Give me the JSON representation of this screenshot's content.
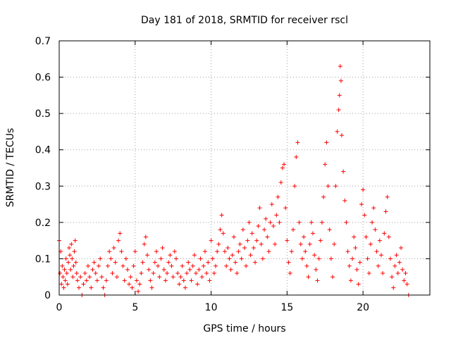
{
  "chart_data": {
    "type": "scatter",
    "title": "Day 181 of 2018, SRMTID for receiver rscl",
    "xlabel": "GPS time / hours",
    "ylabel": "SRMTID / TECUs",
    "xlim": [
      0,
      24.4
    ],
    "ylim": [
      0,
      0.7
    ],
    "xticks": [
      0,
      5,
      10,
      15,
      20
    ],
    "xtick_labels": [
      "0",
      "5",
      "10",
      "15",
      "20"
    ],
    "yticks": [
      0,
      0.1,
      0.2,
      0.3,
      0.4,
      0.5,
      0.6,
      0.7
    ],
    "ytick_labels": [
      "0",
      "0.1",
      "0.2",
      "0.3",
      "0.4",
      "0.5",
      "0.6",
      "0.7"
    ],
    "grid": true,
    "legend": "none",
    "marker": "+",
    "series": [
      {
        "name": "SRMTID",
        "color": "#ff0000",
        "points": [
          [
            0.0,
            0.15
          ],
          [
            0.05,
            0.06
          ],
          [
            0.1,
            0.12
          ],
          [
            0.15,
            0.03
          ],
          [
            0.2,
            0.08
          ],
          [
            0.25,
            0.05
          ],
          [
            0.3,
            0.02
          ],
          [
            0.35,
            0.07
          ],
          [
            0.4,
            0.04
          ],
          [
            0.45,
            0.1
          ],
          [
            0.5,
            0.06
          ],
          [
            0.55,
            0.03
          ],
          [
            0.6,
            0.09
          ],
          [
            0.65,
            0.13
          ],
          [
            0.7,
            0.11
          ],
          [
            0.75,
            0.07
          ],
          [
            0.8,
            0.14
          ],
          [
            0.85,
            0.1
          ],
          [
            0.9,
            0.05
          ],
          [
            0.95,
            0.08
          ],
          [
            1.0,
            0.12
          ],
          [
            1.05,
            0.15
          ],
          [
            1.1,
            0.09
          ],
          [
            1.15,
            0.06
          ],
          [
            1.2,
            0.04
          ],
          [
            1.3,
            0.02
          ],
          [
            1.4,
            0.05
          ],
          [
            1.5,
            0.0
          ],
          [
            1.6,
            0.03
          ],
          [
            1.7,
            0.06
          ],
          [
            1.8,
            0.04
          ],
          [
            1.9,
            0.08
          ],
          [
            2.0,
            0.05
          ],
          [
            2.1,
            0.02
          ],
          [
            2.2,
            0.07
          ],
          [
            2.3,
            0.09
          ],
          [
            2.4,
            0.06
          ],
          [
            2.5,
            0.04
          ],
          [
            2.6,
            0.08
          ],
          [
            2.7,
            0.1
          ],
          [
            2.8,
            0.05
          ],
          [
            2.9,
            0.02
          ],
          [
            3.0,
            0.0
          ],
          [
            3.1,
            0.04
          ],
          [
            3.2,
            0.08
          ],
          [
            3.3,
            0.12
          ],
          [
            3.4,
            0.1
          ],
          [
            3.5,
            0.06
          ],
          [
            3.6,
            0.13
          ],
          [
            3.7,
            0.09
          ],
          [
            3.8,
            0.05
          ],
          [
            3.9,
            0.15
          ],
          [
            4.0,
            0.17
          ],
          [
            4.1,
            0.12
          ],
          [
            4.2,
            0.08
          ],
          [
            4.3,
            0.04
          ],
          [
            4.4,
            0.1
          ],
          [
            4.5,
            0.07
          ],
          [
            4.6,
            0.03
          ],
          [
            4.7,
            0.05
          ],
          [
            4.8,
            0.02
          ],
          [
            4.9,
            0.08
          ],
          [
            5.0,
            0.12
          ],
          [
            5.1,
            0.04
          ],
          [
            5.2,
            0.01
          ],
          [
            5.3,
            0.03
          ],
          [
            5.4,
            0.06
          ],
          [
            5.5,
            0.09
          ],
          [
            5.6,
            0.14
          ],
          [
            5.7,
            0.16
          ],
          [
            5.8,
            0.11
          ],
          [
            5.9,
            0.07
          ],
          [
            6.0,
            0.04
          ],
          [
            6.1,
            0.02
          ],
          [
            6.2,
            0.06
          ],
          [
            6.3,
            0.09
          ],
          [
            6.4,
            0.12
          ],
          [
            6.5,
            0.08
          ],
          [
            6.6,
            0.05
          ],
          [
            6.7,
            0.1
          ],
          [
            6.8,
            0.13
          ],
          [
            6.9,
            0.07
          ],
          [
            7.0,
            0.04
          ],
          [
            7.1,
            0.06
          ],
          [
            7.2,
            0.09
          ],
          [
            7.3,
            0.11
          ],
          [
            7.4,
            0.08
          ],
          [
            7.5,
            0.05
          ],
          [
            7.6,
            0.12
          ],
          [
            7.7,
            0.1
          ],
          [
            7.8,
            0.06
          ],
          [
            7.9,
            0.03
          ],
          [
            8.0,
            0.05
          ],
          [
            8.1,
            0.08
          ],
          [
            8.2,
            0.04
          ],
          [
            8.3,
            0.02
          ],
          [
            8.4,
            0.06
          ],
          [
            8.5,
            0.09
          ],
          [
            8.6,
            0.07
          ],
          [
            8.7,
            0.04
          ],
          [
            8.8,
            0.08
          ],
          [
            8.9,
            0.11
          ],
          [
            9.0,
            0.06
          ],
          [
            9.1,
            0.03
          ],
          [
            9.2,
            0.07
          ],
          [
            9.3,
            0.1
          ],
          [
            9.4,
            0.05
          ],
          [
            9.5,
            0.08
          ],
          [
            9.6,
            0.12
          ],
          [
            9.7,
            0.06
          ],
          [
            9.8,
            0.09
          ],
          [
            9.9,
            0.04
          ],
          [
            10.0,
            0.15
          ],
          [
            10.1,
            0.1
          ],
          [
            10.2,
            0.06
          ],
          [
            10.3,
            0.08
          ],
          [
            10.4,
            0.12
          ],
          [
            10.5,
            0.14
          ],
          [
            10.6,
            0.18
          ],
          [
            10.7,
            0.22
          ],
          [
            10.8,
            0.17
          ],
          [
            10.9,
            0.12
          ],
          [
            11.0,
            0.08
          ],
          [
            11.1,
            0.13
          ],
          [
            11.2,
            0.1
          ],
          [
            11.3,
            0.07
          ],
          [
            11.4,
            0.11
          ],
          [
            11.5,
            0.16
          ],
          [
            11.6,
            0.09
          ],
          [
            11.7,
            0.06
          ],
          [
            11.8,
            0.12
          ],
          [
            11.9,
            0.14
          ],
          [
            12.0,
            0.1
          ],
          [
            12.1,
            0.18
          ],
          [
            12.2,
            0.13
          ],
          [
            12.3,
            0.08
          ],
          [
            12.4,
            0.15
          ],
          [
            12.5,
            0.2
          ],
          [
            12.6,
            0.11
          ],
          [
            12.7,
            0.17
          ],
          [
            12.8,
            0.13
          ],
          [
            12.9,
            0.09
          ],
          [
            13.0,
            0.15
          ],
          [
            13.1,
            0.19
          ],
          [
            13.2,
            0.24
          ],
          [
            13.3,
            0.14
          ],
          [
            13.4,
            0.1
          ],
          [
            13.5,
            0.18
          ],
          [
            13.6,
            0.21
          ],
          [
            13.7,
            0.16
          ],
          [
            13.8,
            0.12
          ],
          [
            13.9,
            0.2
          ],
          [
            14.0,
            0.25
          ],
          [
            14.1,
            0.19
          ],
          [
            14.2,
            0.14
          ],
          [
            14.3,
            0.22
          ],
          [
            14.4,
            0.27
          ],
          [
            14.5,
            0.2
          ],
          [
            14.6,
            0.31
          ],
          [
            14.7,
            0.35
          ],
          [
            14.8,
            0.36
          ],
          [
            14.9,
            0.24
          ],
          [
            15.0,
            0.15
          ],
          [
            15.1,
            0.09
          ],
          [
            15.2,
            0.06
          ],
          [
            15.3,
            0.12
          ],
          [
            15.4,
            0.18
          ],
          [
            15.5,
            0.3
          ],
          [
            15.6,
            0.38
          ],
          [
            15.7,
            0.42
          ],
          [
            15.8,
            0.2
          ],
          [
            15.9,
            0.14
          ],
          [
            16.0,
            0.1
          ],
          [
            16.1,
            0.16
          ],
          [
            16.2,
            0.12
          ],
          [
            16.3,
            0.08
          ],
          [
            16.4,
            0.05
          ],
          [
            16.5,
            0.14
          ],
          [
            16.6,
            0.2
          ],
          [
            16.7,
            0.17
          ],
          [
            16.8,
            0.11
          ],
          [
            16.9,
            0.07
          ],
          [
            17.0,
            0.04
          ],
          [
            17.1,
            0.1
          ],
          [
            17.2,
            0.15
          ],
          [
            17.3,
            0.2
          ],
          [
            17.4,
            0.27
          ],
          [
            17.5,
            0.36
          ],
          [
            17.6,
            0.42
          ],
          [
            17.7,
            0.3
          ],
          [
            17.8,
            0.18
          ],
          [
            17.9,
            0.1
          ],
          [
            18.0,
            0.05
          ],
          [
            18.1,
            0.14
          ],
          [
            18.2,
            0.3
          ],
          [
            18.3,
            0.45
          ],
          [
            18.4,
            0.51
          ],
          [
            18.45,
            0.55
          ],
          [
            18.5,
            0.63
          ],
          [
            18.55,
            0.59
          ],
          [
            18.6,
            0.44
          ],
          [
            18.7,
            0.34
          ],
          [
            18.8,
            0.26
          ],
          [
            18.9,
            0.2
          ],
          [
            19.0,
            0.12
          ],
          [
            19.1,
            0.08
          ],
          [
            19.2,
            0.04
          ],
          [
            19.3,
            0.1
          ],
          [
            19.4,
            0.16
          ],
          [
            19.5,
            0.13
          ],
          [
            19.6,
            0.07
          ],
          [
            19.7,
            0.03
          ],
          [
            19.8,
            0.09
          ],
          [
            19.9,
            0.25
          ],
          [
            20.0,
            0.29
          ],
          [
            20.1,
            0.22
          ],
          [
            20.2,
            0.16
          ],
          [
            20.3,
            0.1
          ],
          [
            20.4,
            0.06
          ],
          [
            20.5,
            0.14
          ],
          [
            20.6,
            0.2
          ],
          [
            20.7,
            0.24
          ],
          [
            20.8,
            0.18
          ],
          [
            20.9,
            0.12
          ],
          [
            21.0,
            0.08
          ],
          [
            21.1,
            0.15
          ],
          [
            21.2,
            0.11
          ],
          [
            21.3,
            0.06
          ],
          [
            21.4,
            0.17
          ],
          [
            21.5,
            0.23
          ],
          [
            21.6,
            0.27
          ],
          [
            21.7,
            0.16
          ],
          [
            21.8,
            0.1
          ],
          [
            21.9,
            0.05
          ],
          [
            22.0,
            0.02
          ],
          [
            22.1,
            0.08
          ],
          [
            22.2,
            0.11
          ],
          [
            22.3,
            0.06
          ],
          [
            22.4,
            0.09
          ],
          [
            22.5,
            0.13
          ],
          [
            22.6,
            0.07
          ],
          [
            22.7,
            0.04
          ],
          [
            22.8,
            0.06
          ],
          [
            22.9,
            0.03
          ],
          [
            23.0,
            0.0
          ]
        ]
      }
    ]
  }
}
